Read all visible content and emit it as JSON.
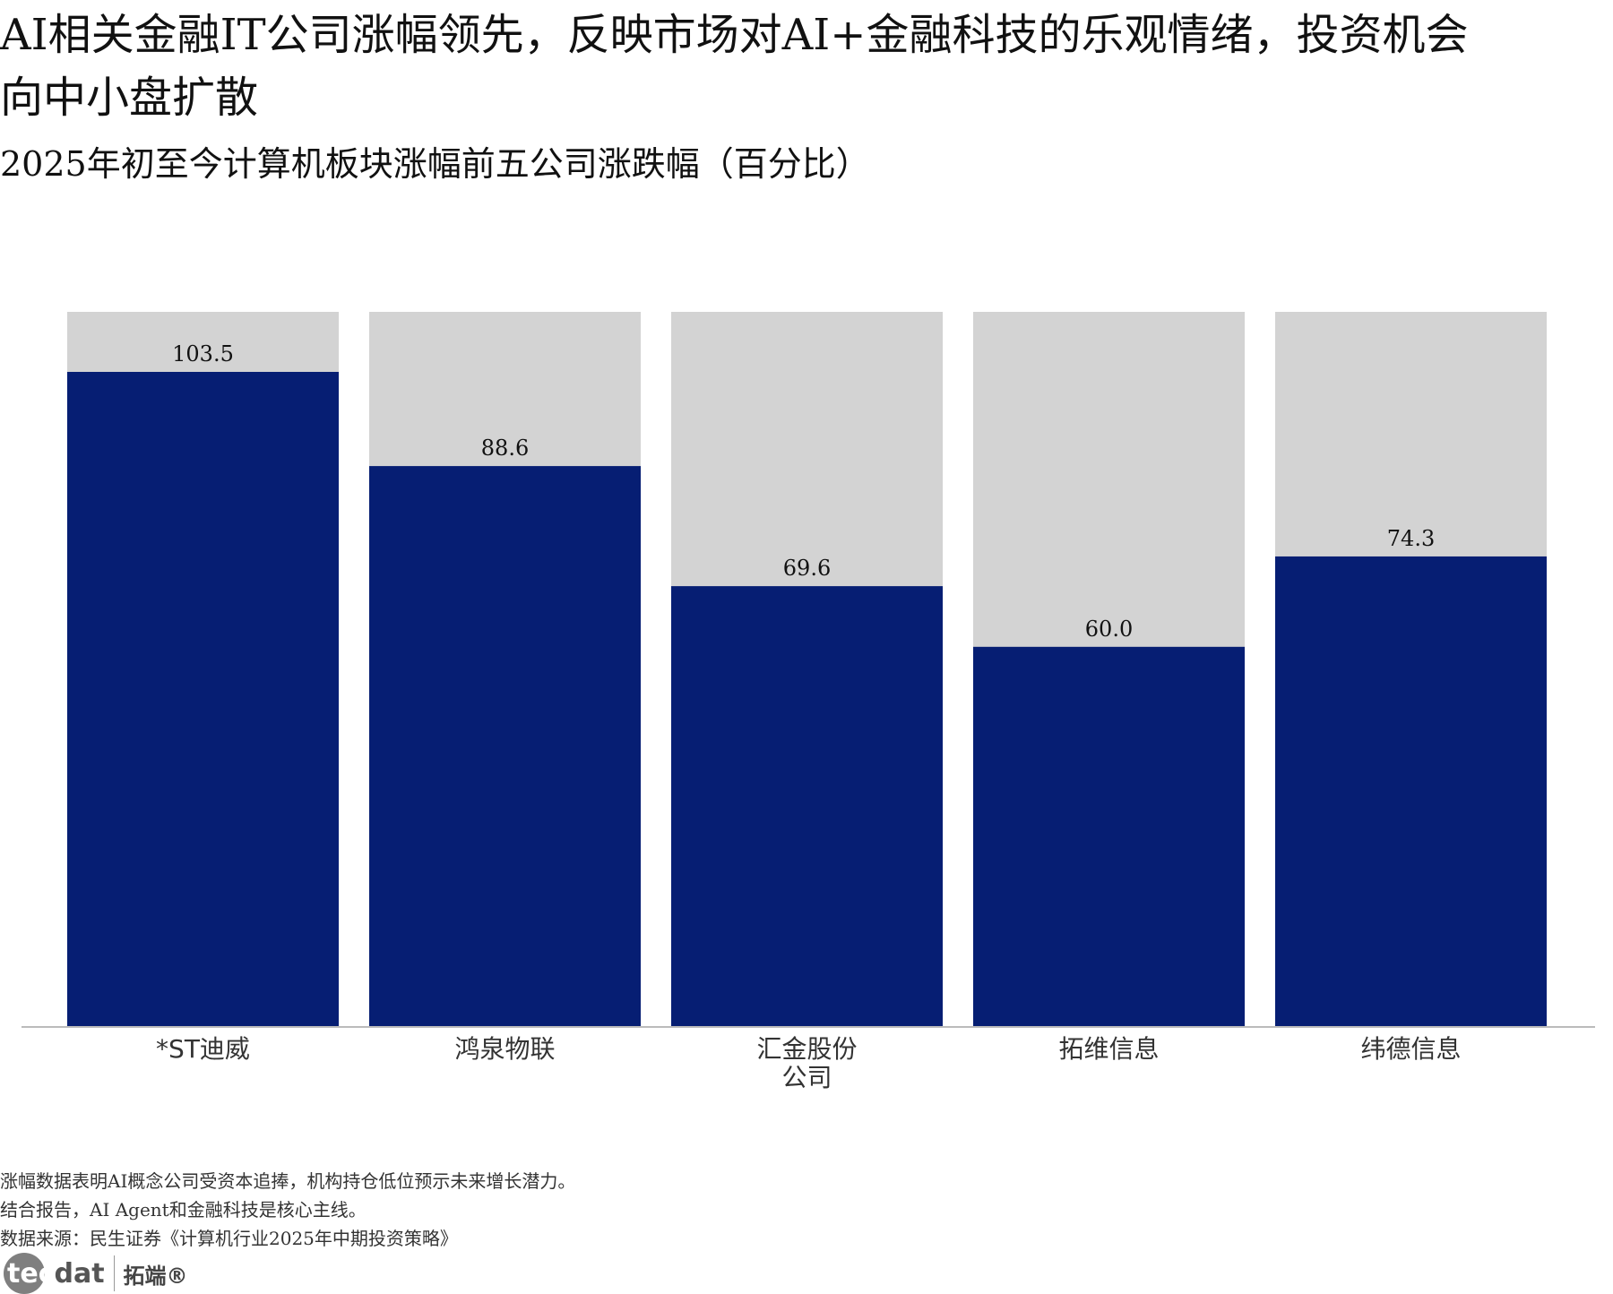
{
  "header": {
    "title": "AI相关金融IT公司涨幅领先，反映市场对AI+金融科技的乐观情绪，投资机会向中小盘扩散",
    "subtitle": "2025年初至今计算机板块涨幅前五公司涨跌幅（百分比）"
  },
  "chart_data": {
    "type": "bar",
    "title": "2025年初至今计算机板块涨幅前五公司涨跌幅（百分比）",
    "categories": [
      "*ST迪威",
      "鸿泉物联",
      "汇金股份公司",
      "拓维信息",
      "纬德信息"
    ],
    "category_lines": [
      [
        "*ST迪威"
      ],
      [
        "鸿泉物联"
      ],
      [
        "汇金股份",
        "公司"
      ],
      [
        "拓维信息"
      ],
      [
        "纬德信息"
      ]
    ],
    "values": [
      103.5,
      88.6,
      69.6,
      60.0,
      74.3
    ],
    "value_labels": [
      "103.5",
      "88.6",
      "69.6",
      "60.0",
      "74.3"
    ],
    "ylim": [
      0,
      113.0
    ],
    "xlabel": "",
    "ylabel": "",
    "grid": false,
    "background_bars": true,
    "colors": {
      "bar": "#061e73",
      "background_bar": "#d3d3d3",
      "axis": "#bbbbbb"
    }
  },
  "notes": [
    "涨幅数据表明AI概念公司受资本追捧，机构持仓低位预示未来增长潜力。",
    "结合报告，AI Agent和金融科技是核心主线。",
    "数据来源：民生证券《计算机行业2025年中期投资策略》"
  ],
  "logo": {
    "word_prefix": "tec",
    "word_suffix": "dat",
    "chinese": "拓端®",
    "icon": "tecdat-logo"
  }
}
